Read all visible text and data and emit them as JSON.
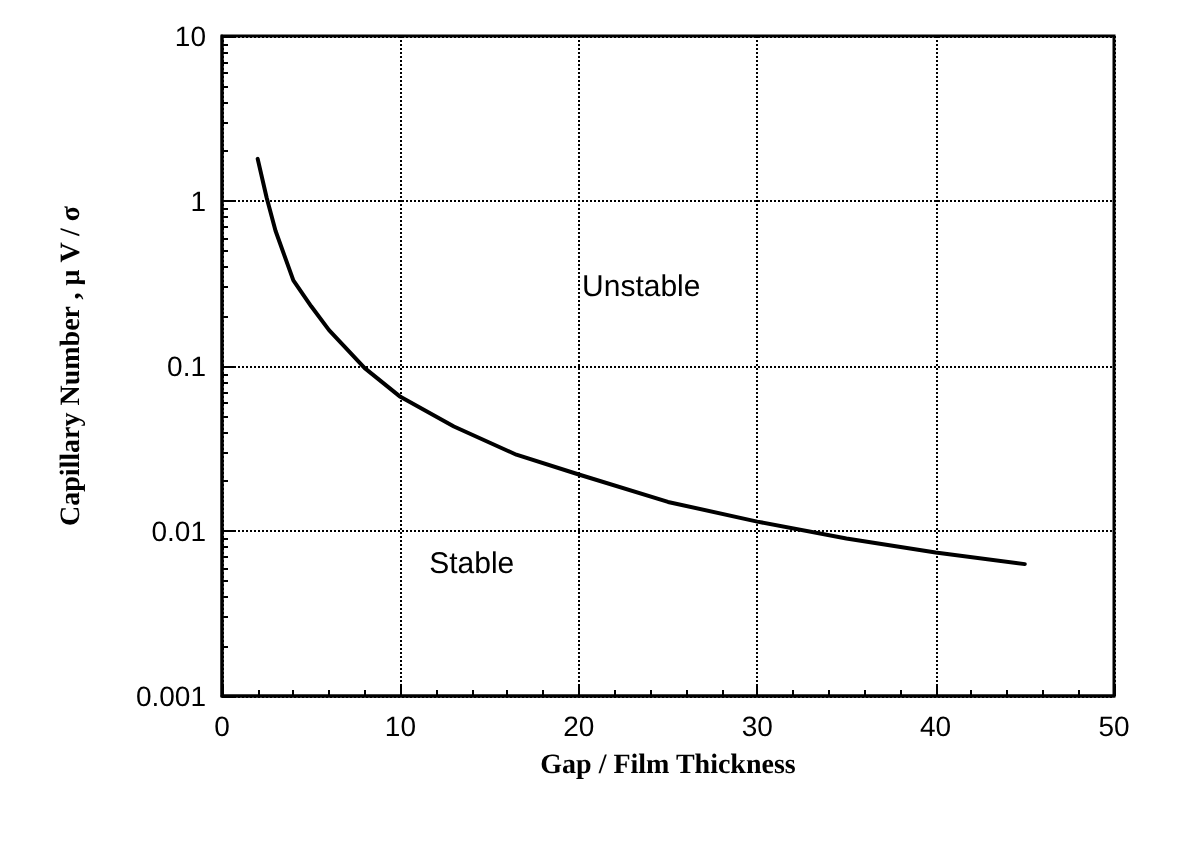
{
  "chart_data": {
    "type": "line",
    "xlabel": "Gap / Film Thickness",
    "ylabel": "Capillary Number , μ V / σ",
    "x": [
      2,
      2.5,
      3,
      4,
      5,
      6,
      8,
      10,
      13,
      16.5,
      20,
      25,
      30,
      35,
      40,
      45
    ],
    "series": [
      {
        "color": "#000000",
        "values": [
          1.8,
          1.05,
          0.66,
          0.33,
          0.23,
          0.165,
          0.097,
          0.065,
          0.043,
          0.029,
          0.022,
          0.015,
          0.0114,
          0.009,
          0.0074,
          0.0063
        ]
      }
    ],
    "xlim": [
      0,
      50
    ],
    "xticks": [
      0,
      10,
      20,
      30,
      40,
      50
    ],
    "ylim": [
      0.001,
      10
    ],
    "yticks": [
      0.001,
      0.01,
      0.1,
      1,
      10
    ],
    "log": "y",
    "grid": true,
    "marker": "none",
    "line_style": "solid",
    "annotations": [
      "Unstable",
      "Stable"
    ]
  }
}
